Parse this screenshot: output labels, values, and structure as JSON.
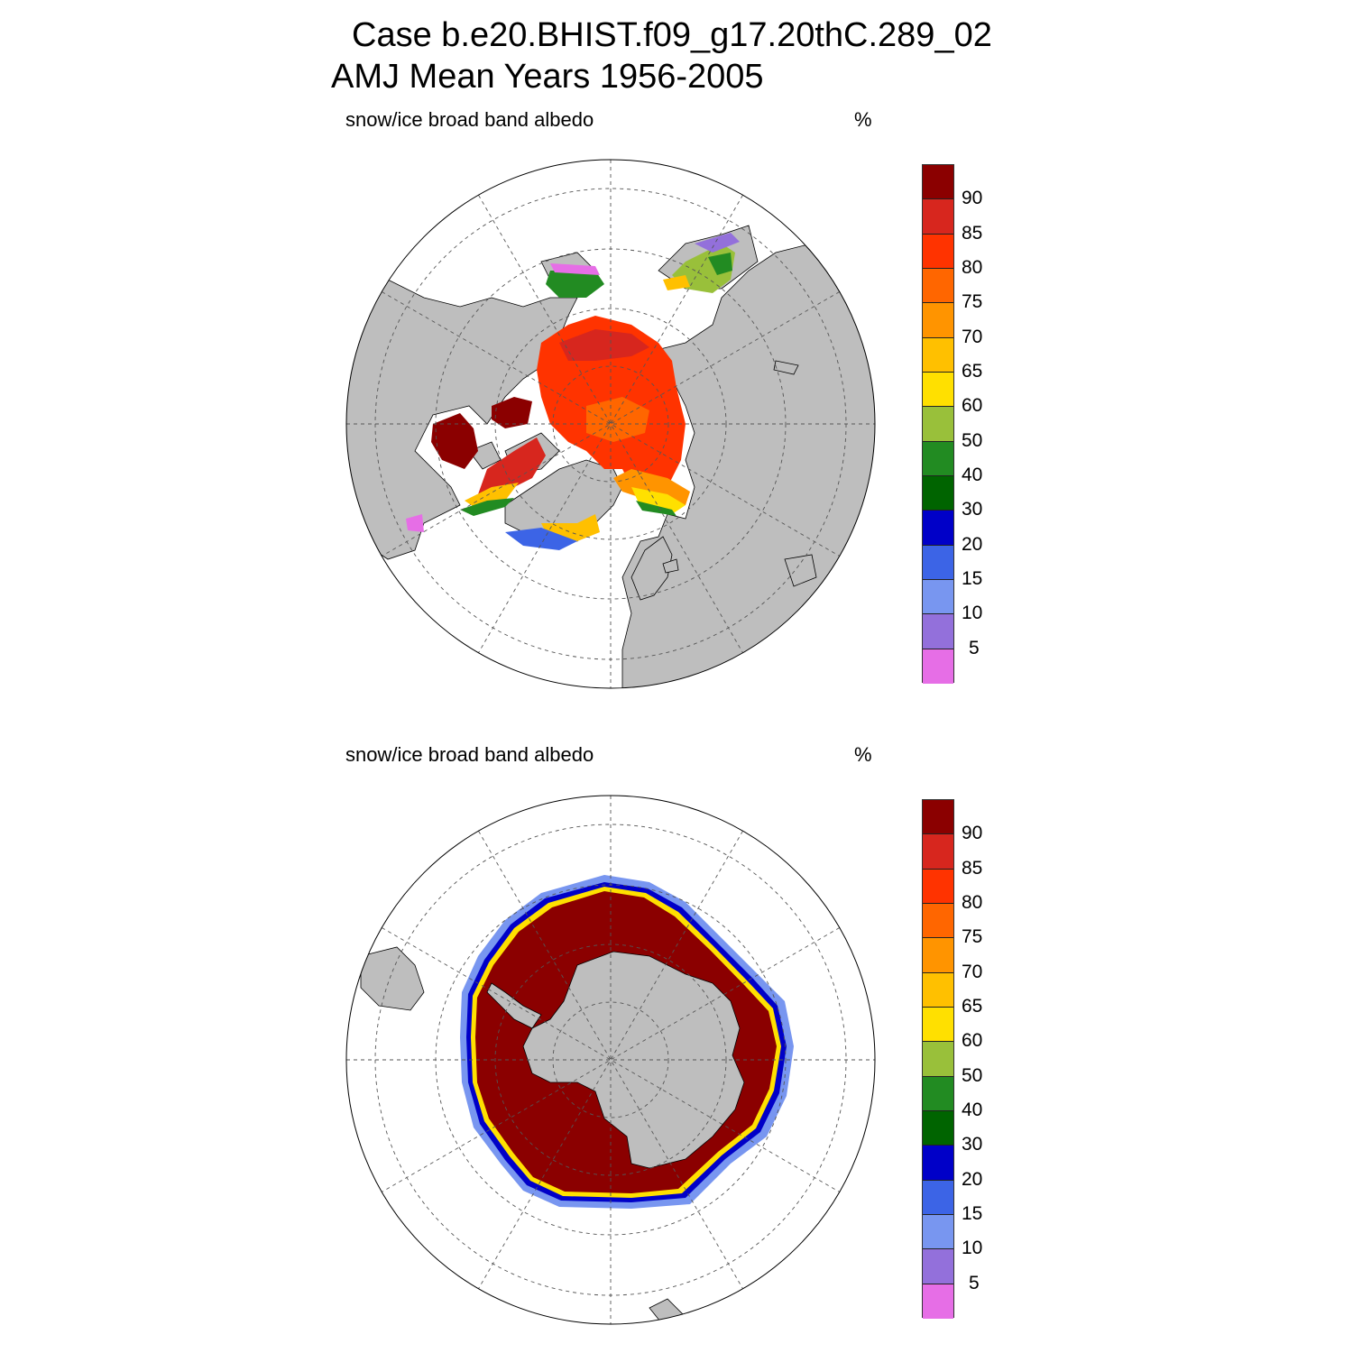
{
  "title": {
    "line1": "Case b.e20.BHIST.f09_g17.20thC.289_02",
    "line2": "AMJ Mean   Years 1956-2005"
  },
  "panels": [
    {
      "label": "snow/ice broad band albedo",
      "unit": "%",
      "hemisphere": "north"
    },
    {
      "label": "snow/ice broad band albedo",
      "unit": "%",
      "hemisphere": "south"
    }
  ],
  "colorbar": {
    "tick_labels": [
      "90",
      "85",
      "80",
      "75",
      "70",
      "65",
      "60",
      "50",
      "40",
      "30",
      "20",
      "15",
      "10",
      "5"
    ],
    "colors_top_to_bottom": [
      "#8b0000",
      "#d7261e",
      "#ff3300",
      "#ff6600",
      "#ff9400",
      "#ffc000",
      "#ffe000",
      "#99c03a",
      "#228b22",
      "#006400",
      "#0000c8",
      "#3c64e6",
      "#7896f0",
      "#9370db",
      "#e66ee6"
    ]
  },
  "map_colors": {
    "land": "#bebebe",
    "ocean": "#ffffff",
    "grid": "#555555"
  }
}
